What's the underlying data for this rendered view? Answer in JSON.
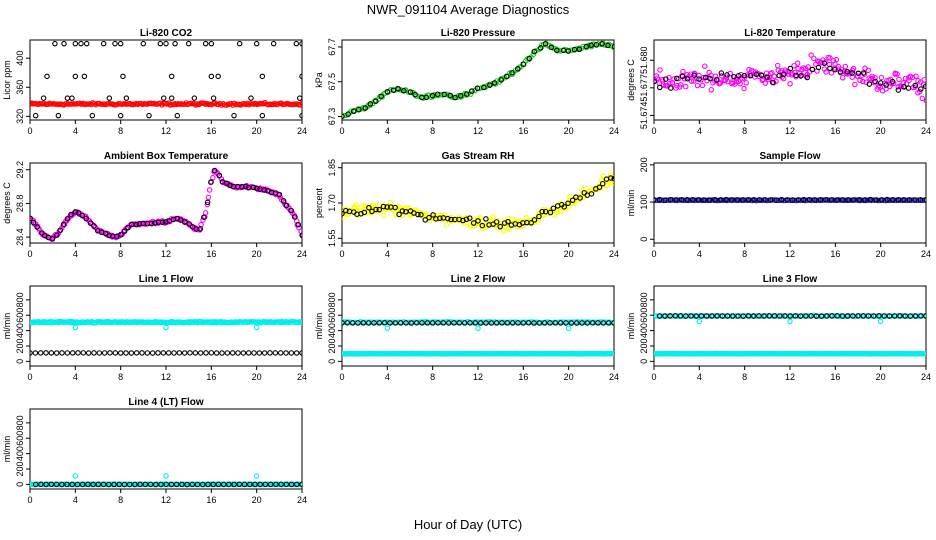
{
  "page": {
    "title": "NWR_091104  Average Diagnostics",
    "x_axis_label": "Hour of Day (UTC)"
  },
  "colors": {
    "black": "#000000",
    "red": "#ff0000",
    "green": "#22cc22",
    "magenta": "#ff00ff",
    "yellow": "#ffff00",
    "blue": "#1f1fd0",
    "cyan": "#00eeee"
  },
  "chart_data": [
    {
      "id": "li820-co2",
      "type": "scatter",
      "title": "Li-820 CO2",
      "ylabel": "Licor ppm",
      "xlim": [
        0,
        24
      ],
      "xticks": [
        0,
        4,
        8,
        12,
        16,
        20,
        24
      ],
      "ylim": [
        315,
        425
      ],
      "yticks": [
        320,
        360,
        400
      ],
      "ytick_labels": [
        "320",
        "360",
        "400"
      ],
      "series": [
        {
          "kind": "band",
          "color": "red",
          "x_start": 0,
          "x_end": 24,
          "y": 337,
          "y_spread": 2,
          "points": 170
        },
        {
          "kind": "points",
          "color": "black",
          "x": [
            2.2,
            3.0,
            4.0,
            4.5,
            5.0,
            6.5,
            7.5,
            8.0,
            10.0,
            11.5,
            12.0,
            12.8,
            14.0,
            15.5,
            16.0,
            18.5,
            20.0,
            21.5,
            23.5,
            24.0
          ],
          "y": [
            420,
            420,
            420,
            420,
            420,
            420,
            420,
            420,
            420,
            420,
            420,
            420,
            420,
            420,
            420,
            420,
            420,
            420,
            420,
            420
          ]
        },
        {
          "kind": "points",
          "color": "black",
          "x": [
            1.5,
            4.0,
            4.8,
            8.2,
            12.5,
            16.0,
            16.6,
            20.5,
            24.0
          ],
          "y": [
            375,
            375,
            375,
            375,
            375,
            375,
            375,
            375,
            375
          ]
        },
        {
          "kind": "points",
          "color": "black",
          "x": [
            1.2,
            3.3,
            3.7,
            7.0,
            8.5,
            11.8,
            12.5,
            14.5,
            16.2,
            19.5,
            23.8
          ],
          "y": [
            345,
            345,
            345,
            345,
            345,
            345,
            345,
            345,
            345,
            345,
            345
          ]
        },
        {
          "kind": "points",
          "color": "black",
          "x": [
            0.5,
            2.5,
            5.5,
            8.0,
            10.5,
            13.0,
            18.0,
            20.5,
            24.0
          ],
          "y": [
            321,
            321,
            321,
            321,
            321,
            321,
            321,
            321,
            321
          ]
        }
      ]
    },
    {
      "id": "li820-pressure",
      "type": "scatter",
      "title": "Li-820 Pressure",
      "ylabel": "kPa",
      "xlim": [
        0,
        24
      ],
      "xticks": [
        0,
        4,
        8,
        12,
        16,
        20,
        24
      ],
      "ylim": [
        67.28,
        67.74
      ],
      "yticks": [
        67.3,
        67.5,
        67.7
      ],
      "ytick_labels": [
        "67.3",
        "67.5",
        "67.7"
      ],
      "series": [
        {
          "kind": "curve",
          "color": "green",
          "noise": 0.012,
          "density": 6,
          "x": [
            0,
            1,
            2,
            3,
            4,
            5,
            6,
            7,
            8,
            9,
            10,
            11,
            12,
            13,
            14,
            15,
            16,
            17,
            18,
            19,
            20,
            21,
            22,
            23,
            24
          ],
          "y": [
            67.3,
            67.33,
            67.35,
            67.39,
            67.44,
            67.46,
            67.44,
            67.41,
            67.42,
            67.43,
            67.41,
            67.43,
            67.46,
            67.48,
            67.51,
            67.55,
            67.6,
            67.67,
            67.72,
            67.68,
            67.68,
            67.69,
            67.71,
            67.72,
            67.7
          ]
        },
        {
          "kind": "curve",
          "color": "black",
          "noise": 0.006,
          "density": 2,
          "x": [
            0,
            1,
            2,
            3,
            4,
            5,
            6,
            7,
            8,
            9,
            10,
            11,
            12,
            13,
            14,
            15,
            16,
            17,
            18,
            19,
            20,
            21,
            22,
            23,
            24
          ],
          "y": [
            67.3,
            67.33,
            67.35,
            67.39,
            67.44,
            67.46,
            67.44,
            67.41,
            67.42,
            67.43,
            67.41,
            67.43,
            67.46,
            67.48,
            67.51,
            67.55,
            67.6,
            67.67,
            67.72,
            67.68,
            67.68,
            67.69,
            67.71,
            67.72,
            67.7
          ]
        }
      ]
    },
    {
      "id": "li820-temperature",
      "type": "scatter",
      "title": "Li-820 Temperature",
      "ylabel": "degrees C",
      "xlim": [
        0,
        24
      ],
      "xticks": [
        0,
        4,
        8,
        12,
        16,
        20,
        24
      ],
      "ylim": [
        51.6735,
        51.6822
      ],
      "yticks": [
        51.674,
        51.677,
        51.68
      ],
      "ytick_labels": [
        "51.674",
        "51.677",
        "51.680"
      ],
      "series": [
        {
          "kind": "curve",
          "color": "magenta",
          "noise": 0.0017,
          "density": 9,
          "x": [
            0,
            2,
            4,
            6,
            8,
            10,
            12,
            14,
            15,
            16,
            17,
            18,
            19,
            20,
            22,
            24
          ],
          "y": [
            51.6775,
            51.6778,
            51.678,
            51.6779,
            51.6782,
            51.6783,
            51.6785,
            51.6793,
            51.6797,
            51.6793,
            51.6788,
            51.6781,
            51.6778,
            51.6777,
            51.6775,
            51.677
          ]
        },
        {
          "kind": "curve",
          "color": "black",
          "noise": 0.0011,
          "density": 2,
          "x": [
            0,
            2,
            4,
            6,
            8,
            10,
            12,
            14,
            15,
            16,
            17,
            18,
            19,
            20,
            22,
            24
          ],
          "y": [
            51.6775,
            51.6778,
            51.678,
            51.6779,
            51.6782,
            51.6783,
            51.6785,
            51.679,
            51.6793,
            51.679,
            51.6786,
            51.678,
            51.6777,
            51.6776,
            51.6774,
            51.6768
          ]
        }
      ]
    },
    {
      "id": "ambient-box-temperature",
      "type": "scatter",
      "title": "Ambient Box Temperature",
      "ylabel": "degrees C",
      "xlim": [
        0,
        24
      ],
      "xticks": [
        0,
        4,
        8,
        12,
        16,
        20,
        24
      ],
      "ylim": [
        28.33,
        29.28
      ],
      "yticks": [
        28.4,
        28.8,
        29.2
      ],
      "ytick_labels": [
        "28.4",
        "28.8",
        "29.2"
      ],
      "series": [
        {
          "kind": "curve",
          "color": "magenta",
          "noise": 0.022,
          "density": 8,
          "x": [
            0,
            0.5,
            1,
            1.5,
            2,
            2.5,
            3,
            3.5,
            4,
            4.5,
            5,
            5.5,
            6,
            6.5,
            7,
            7.5,
            8,
            8.5,
            9,
            10,
            11,
            12,
            12.5,
            13,
            13.5,
            14,
            14.5,
            15,
            15.5,
            16,
            16.3,
            16.6,
            17,
            18,
            19,
            20,
            21,
            22,
            22.5,
            23,
            23.5,
            24
          ],
          "y": [
            28.62,
            28.55,
            28.45,
            28.4,
            28.38,
            28.45,
            28.55,
            28.65,
            28.7,
            28.68,
            28.62,
            28.55,
            28.48,
            28.45,
            28.42,
            28.4,
            28.42,
            28.5,
            28.55,
            28.56,
            28.57,
            28.58,
            28.6,
            28.62,
            28.6,
            28.55,
            28.5,
            28.5,
            28.7,
            29.05,
            29.2,
            29.15,
            29.05,
            29.0,
            29.0,
            28.98,
            28.95,
            28.9,
            28.8,
            28.72,
            28.6,
            28.42
          ]
        },
        {
          "kind": "curve",
          "color": "black",
          "noise": 0.01,
          "density": 3,
          "x": [
            0,
            0.5,
            1,
            1.5,
            2,
            2.5,
            3,
            3.5,
            4,
            4.5,
            5,
            5.5,
            6,
            6.5,
            7,
            7.5,
            8,
            8.5,
            9,
            10,
            11,
            12,
            12.5,
            13,
            13.5,
            14,
            14.5,
            15,
            15.5,
            16,
            16.3,
            16.6,
            17,
            18,
            19,
            20,
            21,
            22,
            22.5,
            23,
            23.5,
            24
          ],
          "y": [
            28.62,
            28.55,
            28.45,
            28.4,
            28.38,
            28.45,
            28.55,
            28.65,
            28.7,
            28.68,
            28.62,
            28.55,
            28.48,
            28.45,
            28.42,
            28.4,
            28.42,
            28.5,
            28.55,
            28.56,
            28.57,
            28.58,
            28.6,
            28.62,
            28.6,
            28.55,
            28.5,
            28.5,
            28.7,
            29.05,
            29.2,
            29.15,
            29.05,
            29.0,
            29.0,
            28.98,
            28.95,
            28.9,
            28.8,
            28.72,
            28.6,
            28.42
          ]
        }
      ]
    },
    {
      "id": "gas-stream-rh",
      "type": "scatter",
      "title": "Gas Stream RH",
      "ylabel": "percent",
      "xlim": [
        0,
        24
      ],
      "xticks": [
        0,
        4,
        8,
        12,
        16,
        20,
        24
      ],
      "ylim": [
        1.53,
        1.87
      ],
      "yticks": [
        1.55,
        1.7,
        1.85
      ],
      "ytick_labels": [
        "1.55",
        "1.70",
        "1.85"
      ],
      "series": [
        {
          "kind": "curve",
          "color": "yellow",
          "noise": 0.035,
          "density": 9,
          "x": [
            0,
            2,
            4,
            6,
            8,
            10,
            12,
            14,
            16,
            17,
            18,
            20,
            22,
            24
          ],
          "y": [
            1.66,
            1.67,
            1.68,
            1.66,
            1.64,
            1.63,
            1.62,
            1.61,
            1.61,
            1.63,
            1.66,
            1.7,
            1.75,
            1.81
          ]
        },
        {
          "kind": "curve",
          "color": "black",
          "noise": 0.022,
          "density": 3,
          "x": [
            0,
            2,
            4,
            6,
            8,
            10,
            12,
            14,
            16,
            17,
            18,
            20,
            22,
            24
          ],
          "y": [
            1.66,
            1.67,
            1.68,
            1.66,
            1.64,
            1.63,
            1.62,
            1.61,
            1.61,
            1.63,
            1.66,
            1.7,
            1.75,
            1.81
          ]
        }
      ]
    },
    {
      "id": "sample-flow",
      "type": "scatter",
      "title": "Sample Flow",
      "ylabel": "ml/min",
      "xlim": [
        0,
        24
      ],
      "xticks": [
        0,
        4,
        8,
        12,
        16,
        20,
        24
      ],
      "ylim": [
        -10,
        205
      ],
      "yticks": [
        0,
        100,
        200
      ],
      "ytick_labels": [
        "0",
        "100",
        "200"
      ],
      "series": [
        {
          "kind": "band",
          "color": "blue",
          "x_start": 0,
          "x_end": 24,
          "y": 105,
          "y_spread": 1.5,
          "points": 150
        },
        {
          "kind": "band",
          "color": "black",
          "x_start": 0,
          "x_end": 24,
          "y": 106,
          "y_spread": 1,
          "points": 50
        }
      ]
    },
    {
      "id": "line-1-flow",
      "type": "scatter",
      "title": "Line 1 Flow",
      "ylabel": "ml/min",
      "xlim": [
        0,
        24
      ],
      "xticks": [
        0,
        4,
        8,
        12,
        16,
        20,
        24
      ],
      "ylim": [
        -60,
        980
      ],
      "yticks": [
        0,
        200,
        400,
        600,
        800
      ],
      "ytick_labels": [
        "0",
        "200",
        "400",
        "600",
        "800"
      ],
      "series": [
        {
          "kind": "band",
          "color": "cyan",
          "x_start": 0,
          "x_end": 24,
          "y": 510,
          "y_spread": 12,
          "points": 230
        },
        {
          "kind": "points",
          "color": "cyan",
          "x": [
            4,
            12,
            20
          ],
          "y": [
            440,
            440,
            440
          ]
        },
        {
          "kind": "band",
          "color": "black",
          "x_start": 0,
          "x_end": 24,
          "y": 110,
          "y_spread": 2,
          "points": 52
        }
      ]
    },
    {
      "id": "line-2-flow",
      "type": "scatter",
      "title": "Line 2 Flow",
      "ylabel": "ml/min",
      "xlim": [
        0,
        24
      ],
      "xticks": [
        0,
        4,
        8,
        12,
        16,
        20,
        24
      ],
      "ylim": [
        -60,
        980
      ],
      "yticks": [
        0,
        200,
        400,
        600,
        800
      ],
      "ytick_labels": [
        "0",
        "200",
        "400",
        "600",
        "800"
      ],
      "series": [
        {
          "kind": "band",
          "color": "cyan",
          "x_start": 0,
          "x_end": 24,
          "y": 510,
          "y_spread": 10,
          "points": 120
        },
        {
          "kind": "points",
          "color": "cyan",
          "x": [
            4,
            12,
            20
          ],
          "y": [
            430,
            430,
            430
          ]
        },
        {
          "kind": "band",
          "color": "black",
          "x_start": 0,
          "x_end": 24,
          "y": 500,
          "y_spread": 2,
          "points": 52
        },
        {
          "kind": "band",
          "color": "cyan",
          "x_start": 0,
          "x_end": 24,
          "y": 100,
          "y_spread": 3,
          "points": 230
        }
      ]
    },
    {
      "id": "line-3-flow",
      "type": "scatter",
      "title": "Line 3 Flow",
      "ylabel": "ml/min",
      "xlim": [
        0,
        24
      ],
      "xticks": [
        0,
        4,
        8,
        12,
        16,
        20,
        24
      ],
      "ylim": [
        -60,
        980
      ],
      "yticks": [
        0,
        200,
        400,
        600,
        800
      ],
      "ytick_labels": [
        "0",
        "200",
        "400",
        "600",
        "800"
      ],
      "series": [
        {
          "kind": "band",
          "color": "cyan",
          "x_start": 0,
          "x_end": 24,
          "y": 590,
          "y_spread": 8,
          "points": 120
        },
        {
          "kind": "points",
          "color": "cyan",
          "x": [
            4,
            12,
            20
          ],
          "y": [
            520,
            520,
            520
          ]
        },
        {
          "kind": "band",
          "color": "black",
          "x_start": 0.5,
          "x_end": 24,
          "y": 590,
          "y_spread": 3,
          "points": 52
        },
        {
          "kind": "band",
          "color": "cyan",
          "x_start": 0,
          "x_end": 24,
          "y": 100,
          "y_spread": 3,
          "points": 230
        }
      ]
    },
    {
      "id": "line-4-lt-flow",
      "type": "scatter",
      "title": "Line 4 (LT) Flow",
      "ylabel": "ml/min",
      "xlim": [
        0,
        24
      ],
      "xticks": [
        0,
        4,
        8,
        12,
        16,
        20,
        24
      ],
      "ylim": [
        -60,
        980
      ],
      "yticks": [
        0,
        200,
        400,
        600,
        800
      ],
      "ytick_labels": [
        "0",
        "200",
        "400",
        "600",
        "800"
      ],
      "series": [
        {
          "kind": "band",
          "color": "cyan",
          "x_start": 0,
          "x_end": 24,
          "y": 0,
          "y_spread": 4,
          "points": 230
        },
        {
          "kind": "points",
          "color": "cyan",
          "x": [
            4,
            12,
            20
          ],
          "y": [
            110,
            110,
            110
          ]
        },
        {
          "kind": "band",
          "color": "black",
          "x_start": 0.5,
          "x_end": 24,
          "y": 0,
          "y_spread": 2,
          "points": 52
        }
      ]
    }
  ]
}
